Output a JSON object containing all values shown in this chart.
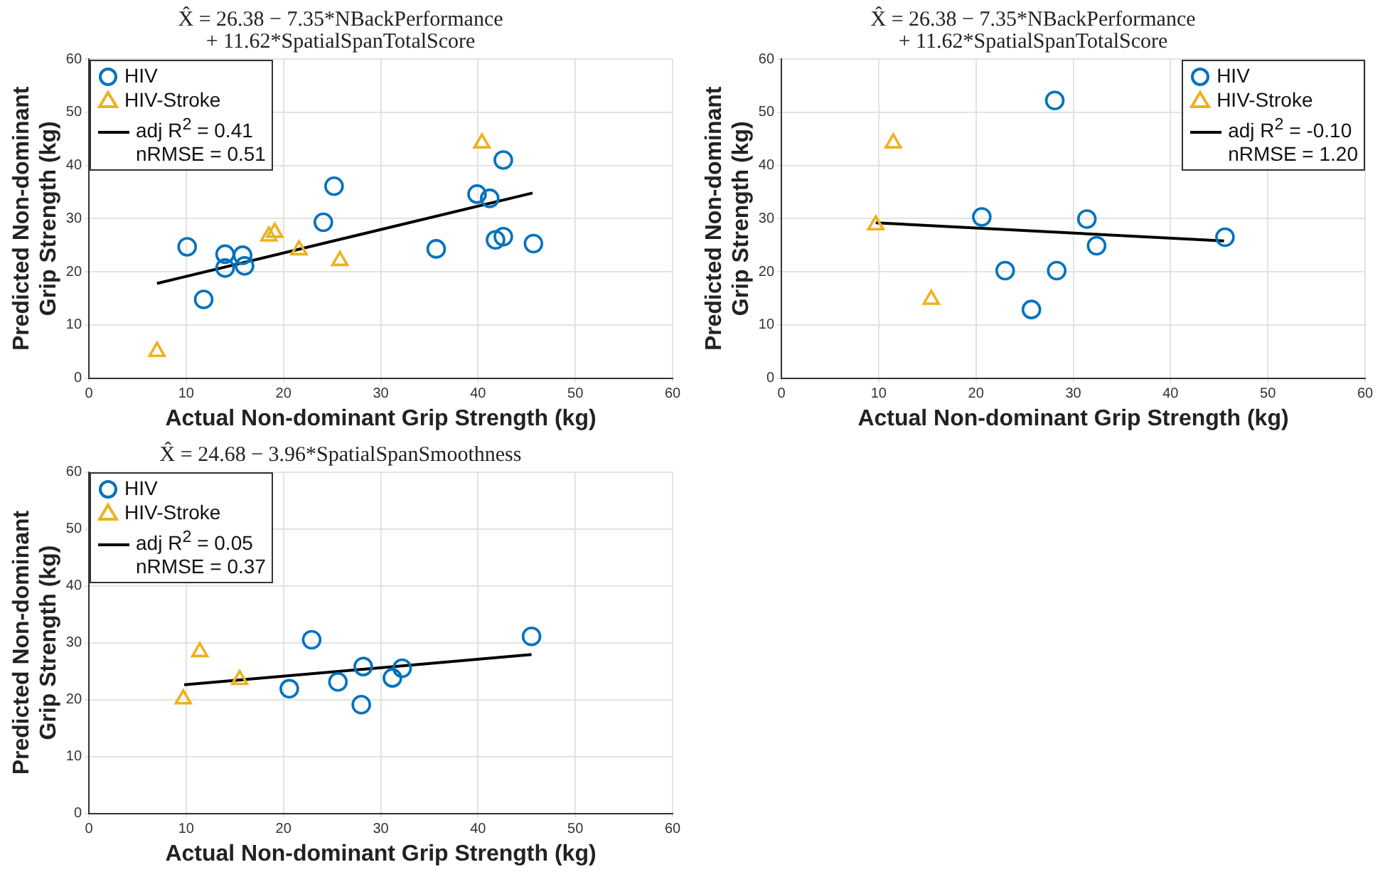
{
  "chart_data": [
    {
      "type": "scatter",
      "title": "X̂ = 26.38 − 7.35*NBackPerformance\n+ 11.62*SpatialSpanTotalScore",
      "xlabel": "Actual Non-dominant Grip Strength (kg)",
      "ylabel": "Predicted Non-dominant\nGrip Strength (kg)",
      "xlim": [
        0,
        60
      ],
      "ylim": [
        0,
        60
      ],
      "xticks": [
        0,
        10,
        20,
        30,
        40,
        50,
        60
      ],
      "yticks": [
        0,
        10,
        20,
        30,
        40,
        50,
        60
      ],
      "grid": true,
      "legend": "top left",
      "series": [
        {
          "name": "HIV",
          "color": "#0072bd",
          "marker": "circle",
          "x": [
            10.1,
            14.0,
            14.0,
            15.8,
            16.0,
            11.8,
            24.1,
            25.2,
            35.7,
            39.9,
            41.2,
            42.6,
            41.8,
            42.6,
            45.7
          ],
          "values": [
            24.7,
            23.3,
            20.7,
            23.1,
            21.1,
            14.8,
            29.3,
            36.1,
            24.3,
            34.6,
            33.8,
            41.0,
            26.0,
            26.6,
            25.3
          ]
        },
        {
          "name": "HIV-Stroke",
          "color": "#edb120",
          "marker": "triangle",
          "x": [
            7.0,
            18.5,
            19.1,
            21.6,
            25.8,
            40.4
          ],
          "values": [
            5.0,
            26.7,
            27.4,
            24.1,
            22.1,
            44.2
          ]
        },
        {
          "name": "adj R$^{2}$  = 0.41\nnRMSE = 0.51",
          "type": "line",
          "color": "#000000",
          "marker": "none",
          "x": [
            7.0,
            45.6
          ],
          "values": [
            17.8,
            34.8
          ]
        }
      ]
    },
    {
      "type": "scatter",
      "title": "X̂ = 26.38 − 7.35*NBackPerformance\n+ 11.62*SpatialSpanTotalScore",
      "xlabel": "Actual Non-dominant Grip Strength (kg)",
      "ylabel": "Predicted Non-dominant\nGrip Strength (kg)",
      "xlim": [
        0,
        60
      ],
      "ylim": [
        0,
        60
      ],
      "xticks": [
        0,
        10,
        20,
        30,
        40,
        50,
        60
      ],
      "yticks": [
        0,
        10,
        20,
        30,
        40,
        50,
        60
      ],
      "grid": true,
      "legend": "top right",
      "series": [
        {
          "name": "HIV",
          "color": "#0072bd",
          "marker": "circle",
          "x": [
            28.1,
            20.6,
            31.4,
            32.4,
            23.0,
            28.3,
            25.7,
            45.6
          ],
          "values": [
            52.2,
            30.3,
            29.9,
            24.9,
            20.2,
            20.2,
            12.9,
            26.5
          ]
        },
        {
          "name": "HIV-Stroke",
          "color": "#edb120",
          "marker": "triangle",
          "x": [
            9.7,
            11.5,
            15.4
          ],
          "values": [
            28.8,
            44.2,
            14.8
          ]
        },
        {
          "name": "adj R$^{2}$  = -0.10\nnRMSE = 1.20",
          "type": "line",
          "color": "#000000",
          "marker": "none",
          "x": [
            9.7,
            45.5
          ],
          "values": [
            29.2,
            25.8
          ]
        }
      ]
    },
    {
      "type": "scatter",
      "title": "X̂ = 24.68 − 3.96*SpatialSpanSmoothness",
      "xlabel": "Actual Non-dominant Grip Strength (kg)",
      "ylabel": "Predicted Non-dominant\nGrip Strength (kg)",
      "xlim": [
        0,
        60
      ],
      "ylim": [
        0,
        60
      ],
      "xticks": [
        0,
        10,
        20,
        30,
        40,
        50,
        60
      ],
      "yticks": [
        0,
        10,
        20,
        30,
        40,
        50,
        60
      ],
      "grid": true,
      "legend": "top left",
      "series": [
        {
          "name": "HIV",
          "color": "#0072bd",
          "marker": "circle",
          "x": [
            22.9,
            20.6,
            25.6,
            28.2,
            28.0,
            31.2,
            32.2,
            45.5
          ],
          "values": [
            30.5,
            21.9,
            23.1,
            25.8,
            19.1,
            23.8,
            25.5,
            31.1
          ]
        },
        {
          "name": "HIV-Stroke",
          "color": "#edb120",
          "marker": "triangle",
          "x": [
            9.7,
            11.4,
            15.5
          ],
          "values": [
            20.1,
            28.4,
            23.5
          ]
        },
        {
          "name": "adj R$^{2}$  = 0.05\nnRMSE = 0.37",
          "type": "line",
          "color": "#000000",
          "marker": "none",
          "x": [
            9.8,
            45.5
          ],
          "values": [
            22.6,
            27.9
          ]
        }
      ]
    }
  ]
}
